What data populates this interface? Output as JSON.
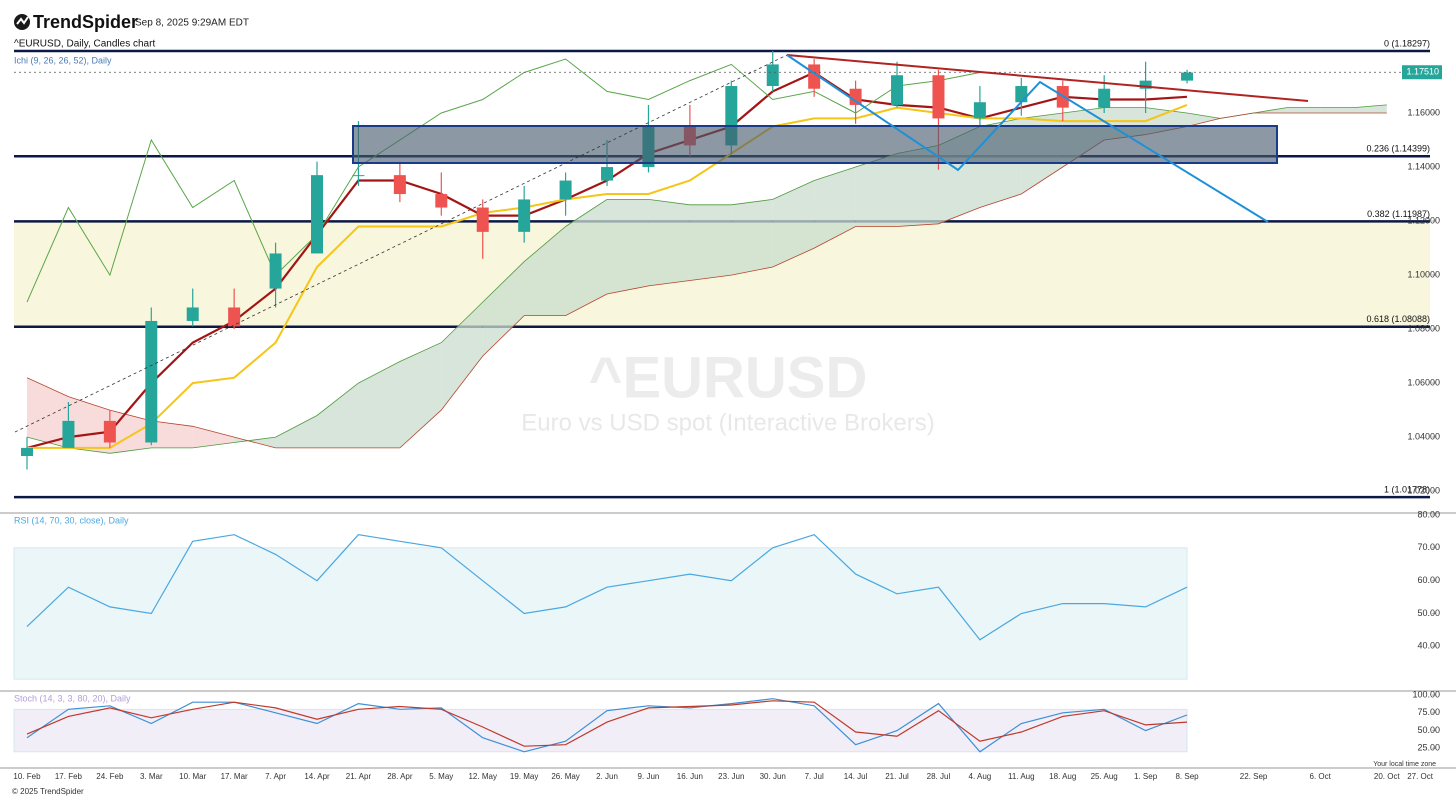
{
  "header": {
    "brand": "TrendSpider",
    "timestamp": "Sep 8, 2025 9:29AM EDT"
  },
  "footer": {
    "copyright": "© 2025 TrendSpider",
    "timezone": "Your local time zone"
  },
  "chart_data": [
    {
      "type": "candlestick",
      "title": "^EURUSD, Daily, Candles chart",
      "indicator": "Ichi (9, 26, 26, 52), Daily",
      "watermark": "^EURUSD",
      "watermark_subtitle": "Euro vs USD spot (Interactive Brokers)",
      "categories": [
        "10. Feb",
        "17. Feb",
        "24. Feb",
        "3. Mar",
        "10. Mar",
        "17. Mar",
        "7. Apr",
        "14. Apr",
        "21. Apr",
        "28. Apr",
        "5. May",
        "12. May",
        "19. May",
        "26. May",
        "2. Jun",
        "9. Jun",
        "16. Jun",
        "23. Jun",
        "30. Jun",
        "7. Jul",
        "14. Jul",
        "21. Jul",
        "28. Jul",
        "4. Aug",
        "11. Aug",
        "18. Aug",
        "25. Aug",
        "1. Sep",
        "8. Sep",
        null,
        "22. Sep",
        null,
        "6. Oct",
        null,
        "20. Oct",
        "27. Oct"
      ],
      "open": [
        1.033,
        1.036,
        1.046,
        1.038,
        1.083,
        1.088,
        1.095,
        1.108,
        1.137,
        1.137,
        1.13,
        1.125,
        1.116,
        1.128,
        1.135,
        1.14,
        1.155,
        1.148,
        1.17,
        1.178,
        1.169,
        1.163,
        1.174,
        1.158,
        1.164,
        1.17,
        1.162,
        1.169,
        1.172,
        null,
        null,
        null,
        null,
        null,
        null,
        null
      ],
      "high": [
        1.04,
        1.053,
        1.05,
        1.088,
        1.095,
        1.095,
        1.112,
        1.142,
        1.157,
        1.142,
        1.138,
        1.128,
        1.133,
        1.138,
        1.15,
        1.163,
        1.163,
        1.172,
        1.183,
        1.18,
        1.172,
        1.179,
        1.176,
        1.17,
        1.173,
        1.172,
        1.174,
        1.179,
        1.176,
        null,
        null,
        null,
        null,
        null,
        null,
        null
      ],
      "low": [
        1.028,
        1.036,
        1.036,
        1.037,
        1.081,
        1.08,
        1.088,
        1.108,
        1.133,
        1.127,
        1.122,
        1.106,
        1.112,
        1.122,
        1.133,
        1.138,
        1.144,
        1.145,
        1.168,
        1.166,
        1.156,
        1.162,
        1.139,
        1.155,
        1.159,
        1.157,
        1.16,
        1.16,
        1.171,
        null,
        null,
        null,
        null,
        null,
        null,
        null
      ],
      "close": [
        1.036,
        1.046,
        1.038,
        1.083,
        1.088,
        1.081,
        1.108,
        1.137,
        1.137,
        1.13,
        1.125,
        1.116,
        1.128,
        1.135,
        1.14,
        1.155,
        1.148,
        1.17,
        1.178,
        1.169,
        1.163,
        1.174,
        1.158,
        1.164,
        1.17,
        1.162,
        1.169,
        1.172,
        1.175,
        null,
        null,
        null,
        null,
        null,
        null,
        null
      ],
      "up_color": "#26a69a",
      "down_color": "#ef5350",
      "series": [
        {
          "color": "#a31515",
          "width": 2.2,
          "values": [
            1.036,
            1.04,
            1.042,
            1.06,
            1.075,
            1.083,
            1.095,
            1.115,
            1.135,
            1.135,
            1.13,
            1.122,
            1.122,
            1.128,
            1.135,
            1.145,
            1.15,
            1.155,
            1.168,
            1.175,
            1.165,
            1.163,
            1.162,
            1.158,
            1.162,
            1.166,
            1.165,
            1.165,
            1.166,
            null,
            null,
            null,
            null,
            null,
            null,
            null
          ]
        },
        {
          "color": "#f5c518",
          "width": 2,
          "values": [
            1.036,
            1.036,
            1.036,
            1.045,
            1.06,
            1.062,
            1.075,
            1.103,
            1.118,
            1.118,
            1.118,
            1.123,
            1.125,
            1.128,
            1.13,
            1.13,
            1.135,
            1.145,
            1.155,
            1.158,
            1.158,
            1.162,
            1.16,
            1.158,
            1.158,
            1.157,
            1.157,
            1.157,
            1.163,
            null,
            null,
            null,
            null,
            null,
            null,
            null
          ]
        },
        {
          "color": "#5aa64a",
          "width": 1,
          "values": [
            1.09,
            1.125,
            1.1,
            1.15,
            1.125,
            1.135,
            1.1,
            1.115,
            1.14,
            1.15,
            1.16,
            1.165,
            1.175,
            1.18,
            1.168,
            1.165,
            1.172,
            1.178,
            1.165,
            1.168,
            1.16,
            1.17,
            1.172,
            1.175,
            null,
            null,
            null,
            null,
            null,
            null,
            null,
            null,
            null,
            null,
            null,
            null
          ]
        }
      ],
      "cloud": {
        "span_a": {
          "color": "#4e9a3e",
          "values": [
            1.04,
            1.036,
            1.034,
            1.036,
            1.036,
            1.038,
            1.04,
            1.048,
            1.06,
            1.068,
            1.075,
            1.09,
            1.105,
            1.118,
            1.128,
            1.128,
            1.126,
            1.126,
            1.128,
            1.135,
            1.14,
            1.145,
            1.148,
            1.155,
            1.158,
            1.16,
            1.162,
            1.162,
            1.16,
            1.158,
            1.16,
            1.162,
            1.162,
            1.162,
            1.163,
            null
          ]
        },
        "span_b": {
          "color": "#b5452f",
          "values": [
            1.062,
            1.055,
            1.05,
            1.046,
            1.044,
            1.04,
            1.036,
            1.036,
            1.036,
            1.036,
            1.05,
            1.07,
            1.085,
            1.085,
            1.093,
            1.096,
            1.098,
            1.1,
            1.103,
            1.11,
            1.118,
            1.118,
            1.119,
            1.125,
            1.13,
            1.14,
            1.15,
            1.152,
            1.155,
            1.158,
            1.16,
            1.16,
            1.16,
            1.16,
            1.16,
            null
          ]
        },
        "bull_fill": "#c9dccd",
        "bear_fill": "#f6cfcf"
      },
      "fib_levels": [
        {
          "value": 1.18297,
          "label": "0 (1.18297)"
        },
        {
          "value": 1.14399,
          "label": "0.236 (1.14399)"
        },
        {
          "value": 1.11987,
          "label": "0.382 (1.11987)"
        },
        {
          "value": 1.08088,
          "label": "0.618 (1.08088)"
        },
        {
          "value": 1.01778,
          "label": "1 (1.01778)"
        }
      ],
      "fib_color": "#0b1a45",
      "fib_band_color": "#f8f6dc",
      "last_price": {
        "value": 1.1751,
        "label": "1.17510"
      },
      "ylim": [
        1.013,
        1.1826
      ],
      "yticks": [
        {
          "value": 1.02,
          "label": "1.02000"
        },
        {
          "value": 1.04,
          "label": "1.04000"
        },
        {
          "value": 1.06,
          "label": "1.06000"
        },
        {
          "value": 1.08,
          "label": "1.08000"
        },
        {
          "value": 1.1,
          "label": "1.10000"
        },
        {
          "value": 1.12,
          "label": "1.12000"
        },
        {
          "value": 1.14,
          "label": "1.14000"
        },
        {
          "value": 1.16,
          "label": "1.16000"
        }
      ]
    },
    {
      "type": "line",
      "title": "RSI (14, 70, 30, close), Daily",
      "color": "#4aa8e0",
      "band": [
        30,
        70
      ],
      "band_color": "#eaf6f8",
      "values": [
        46,
        58,
        52,
        50,
        72,
        74,
        68,
        60,
        74,
        72,
        70,
        60,
        50,
        52,
        58,
        60,
        62,
        60,
        70,
        74,
        62,
        56,
        58,
        42,
        50,
        53,
        53,
        52,
        58,
        null,
        null,
        null,
        null,
        null,
        null,
        null
      ],
      "ylim": [
        26.7,
        80
      ],
      "yticks": [
        {
          "value": 40,
          "label": "40.00"
        },
        {
          "value": 50,
          "label": "50.00"
        },
        {
          "value": 60,
          "label": "60.00"
        },
        {
          "value": 70,
          "label": "70.00"
        },
        {
          "value": 80,
          "label": "80.00"
        }
      ]
    },
    {
      "type": "line",
      "title": "Stoch (14, 3, 3, 80, 20), Daily",
      "band": [
        20,
        80
      ],
      "band_color": "#f1eef8",
      "series": [
        {
          "color": "#3d8fd6",
          "values": [
            40,
            80,
            85,
            60,
            90,
            90,
            75,
            60,
            88,
            80,
            82,
            40,
            20,
            35,
            78,
            85,
            82,
            88,
            95,
            85,
            30,
            50,
            88,
            20,
            60,
            75,
            80,
            50,
            72,
            null,
            null,
            null,
            null,
            null,
            null,
            null
          ]
        },
        {
          "color": "#c0392b",
          "values": [
            45,
            70,
            82,
            68,
            80,
            90,
            82,
            66,
            80,
            84,
            80,
            55,
            28,
            30,
            62,
            82,
            84,
            86,
            92,
            90,
            48,
            42,
            78,
            35,
            48,
            70,
            78,
            58,
            62,
            null,
            null,
            null,
            null,
            null,
            null,
            null
          ]
        }
      ],
      "ylim": [
        0,
        103
      ],
      "yticks": [
        {
          "value": 25,
          "label": "25.00"
        },
        {
          "value": 50,
          "label": "50.00"
        },
        {
          "value": 75,
          "label": "75.00"
        },
        {
          "value": 100,
          "label": "100.00"
        }
      ]
    }
  ]
}
